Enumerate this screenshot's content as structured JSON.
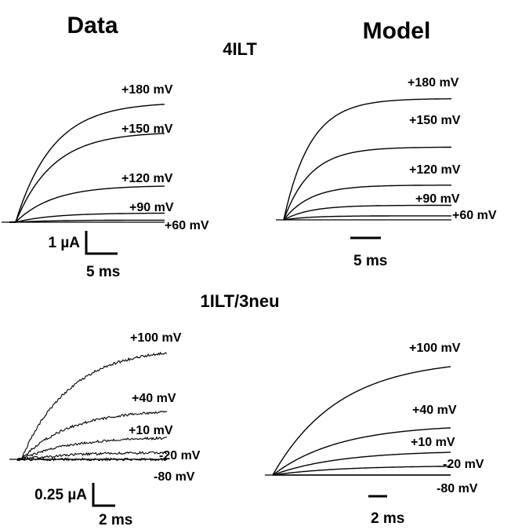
{
  "headings": {
    "left_column": "Data",
    "right_column": "Model",
    "top_construct": "4ILT",
    "bottom_construct": "1ILT/3neu"
  },
  "chart_data": [
    {
      "type": "line",
      "id": "top-data",
      "title": "4ILT",
      "column": "Data",
      "noisy": false,
      "x_range_ms": [
        0,
        15
      ],
      "tau_ms": 3.6,
      "delay_ms": 0.6,
      "series": [
        {
          "name": "+180 mV",
          "amplitude_uA": 1.7
        },
        {
          "name": "+150 mV",
          "amplitude_uA": 1.28
        },
        {
          "name": "+120 mV",
          "amplitude_uA": 0.52
        },
        {
          "name": "+90 mV",
          "amplitude_uA": 0.13
        },
        {
          "name": "+60 mV",
          "amplitude_uA": 0.03
        }
      ],
      "scale_bar": {
        "y_label": "1 µA",
        "y_value_uA": 1,
        "x_label": "5 ms",
        "x_value_ms": 5
      }
    },
    {
      "type": "line",
      "id": "top-model",
      "title": "4ILT",
      "column": "Model",
      "noisy": false,
      "x_range_ms": [
        0,
        22
      ],
      "tau_ms": 3.5,
      "delay_ms": 0,
      "series": [
        {
          "name": "+180 mV",
          "amplitude_uA": 1.5
        },
        {
          "name": "+150 mV",
          "amplitude_uA": 0.9
        },
        {
          "name": "+120 mV",
          "amplitude_uA": 0.43
        },
        {
          "name": "+90 mV",
          "amplitude_uA": 0.18
        },
        {
          "name": "+60 mV",
          "amplitude_uA": 0.05
        }
      ],
      "scale_bar": {
        "x_label": "5 ms",
        "x_value_ms": 5
      }
    },
    {
      "type": "line",
      "id": "bottom-data",
      "title": "1ILT/3neu",
      "column": "Data",
      "noisy": true,
      "x_range_ms": [
        0,
        7.7
      ],
      "tau_ms": 2.5,
      "delay_ms": 0.2,
      "series": [
        {
          "name": "+100 mV",
          "amplitude_uA": 0.65
        },
        {
          "name": "+40 mV",
          "amplitude_uA": 0.29
        },
        {
          "name": "+10 mV",
          "amplitude_uA": 0.13
        },
        {
          "name": "-20 mV",
          "amplitude_uA": 0.04
        },
        {
          "name": "-80 mV",
          "amplitude_uA": 0.0
        }
      ],
      "scale_bar": {
        "y_label": "0.25 µA",
        "y_value_uA": 0.25,
        "x_label": "2 ms",
        "x_value_ms": 2
      }
    },
    {
      "type": "line",
      "id": "bottom-model",
      "title": "1ILT/3neu",
      "column": "Model",
      "noisy": false,
      "x_range_ms": [
        0,
        9.4
      ],
      "tau_ms": 3.5,
      "delay_ms": 0,
      "series": [
        {
          "name": "+100 mV",
          "amplitude_uA": 0.62
        },
        {
          "name": "+40 mV",
          "amplitude_uA": 0.27
        },
        {
          "name": "+10 mV",
          "amplitude_uA": 0.13
        },
        {
          "name": "-20 mV",
          "amplitude_uA": 0.05
        },
        {
          "name": "-80 mV",
          "amplitude_uA": 0.0
        }
      ],
      "scale_bar": {
        "x_label": "2 ms",
        "x_value_ms": 2
      }
    }
  ]
}
